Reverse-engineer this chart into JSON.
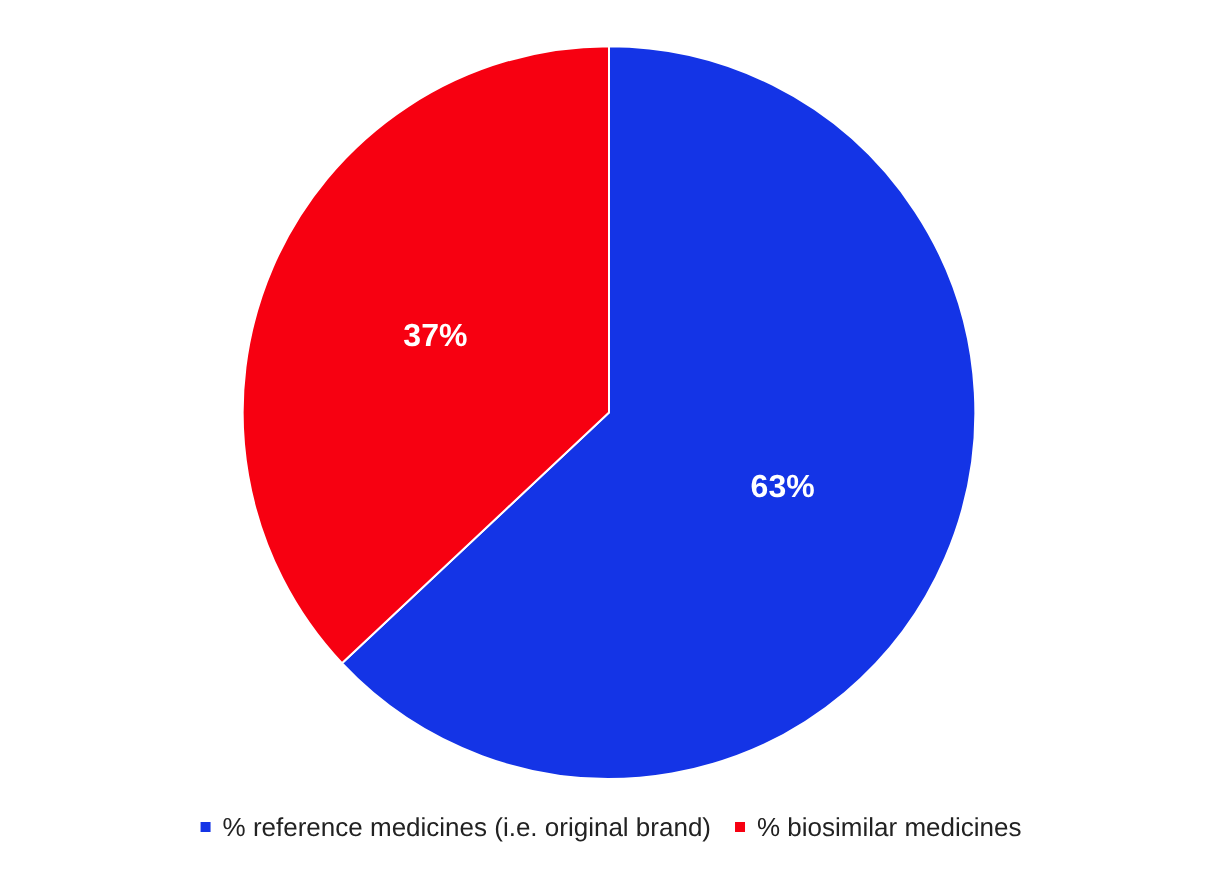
{
  "chart_data": {
    "type": "pie",
    "categories": [
      "% reference medicines (i.e. original brand)",
      "% biosimilar medicines"
    ],
    "values": [
      63,
      37
    ],
    "colors": [
      "#1434e6",
      "#f70011"
    ],
    "value_labels": [
      "63%",
      "37%"
    ],
    "legend": "bottom"
  }
}
